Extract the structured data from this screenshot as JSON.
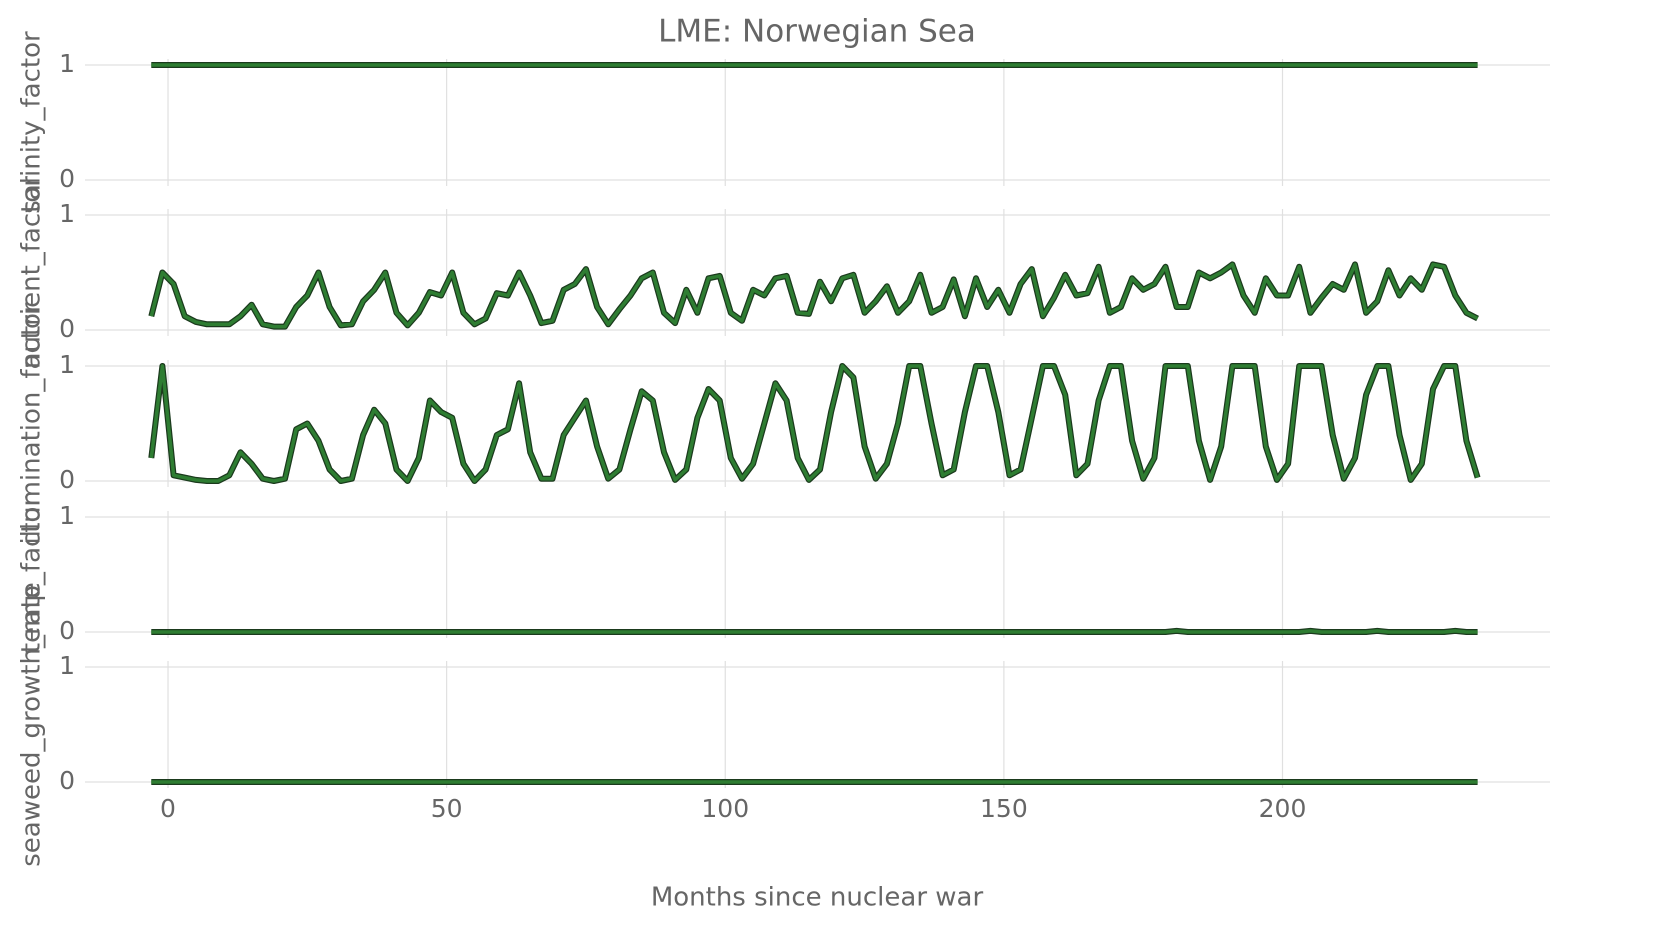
{
  "chart_data": {
    "type": "line",
    "title": "LME: Norwegian Sea",
    "xlabel": "Months since nuclear war",
    "xlim": [
      -14,
      248
    ],
    "xticks": [
      0,
      50,
      100,
      150,
      200
    ],
    "grid": true,
    "x": [
      -3,
      -1,
      1,
      3,
      5,
      7,
      9,
      11,
      13,
      15,
      17,
      19,
      21,
      23,
      25,
      27,
      29,
      31,
      33,
      35,
      37,
      39,
      41,
      43,
      45,
      47,
      49,
      51,
      53,
      55,
      57,
      59,
      61,
      63,
      65,
      67,
      69,
      71,
      73,
      75,
      77,
      79,
      81,
      83,
      85,
      87,
      89,
      91,
      93,
      95,
      97,
      99,
      101,
      103,
      105,
      107,
      109,
      111,
      113,
      115,
      117,
      119,
      121,
      123,
      125,
      127,
      129,
      131,
      133,
      135,
      137,
      139,
      141,
      143,
      145,
      147,
      149,
      151,
      153,
      155,
      157,
      159,
      161,
      163,
      165,
      167,
      169,
      171,
      173,
      175,
      177,
      179,
      181,
      183,
      185,
      187,
      189,
      191,
      193,
      195,
      197,
      199,
      201,
      203,
      205,
      207,
      209,
      211,
      213,
      215,
      217,
      219,
      221,
      223,
      225,
      227,
      229,
      231,
      233,
      235
    ],
    "series": [
      {
        "ylabel": "salinity_factor",
        "color": "#2e7d32",
        "ylim": [
          0,
          1
        ],
        "yticks": [
          0,
          1
        ],
        "values": [
          1,
          1,
          1,
          1,
          1,
          1,
          1,
          1,
          1,
          1,
          1,
          1,
          1,
          1,
          1,
          1,
          1,
          1,
          1,
          1,
          1,
          1,
          1,
          1,
          1,
          1,
          1,
          1,
          1,
          1,
          1,
          1,
          1,
          1,
          1,
          1,
          1,
          1,
          1,
          1,
          1,
          1,
          1,
          1,
          1,
          1,
          1,
          1,
          1,
          1,
          1,
          1,
          1,
          1,
          1,
          1,
          1,
          1,
          1,
          1,
          1,
          1,
          1,
          1,
          1,
          1,
          1,
          1,
          1,
          1,
          1,
          1,
          1,
          1,
          1,
          1,
          1,
          1,
          1,
          1,
          1,
          1,
          1,
          1,
          1,
          1,
          1,
          1,
          1,
          1,
          1,
          1,
          1,
          1,
          1,
          1,
          1,
          1,
          1,
          1,
          1,
          1,
          1,
          1,
          1,
          1,
          1,
          1,
          1,
          1,
          1,
          1,
          1,
          1,
          1,
          1,
          1,
          1,
          1,
          1
        ]
      },
      {
        "ylabel": "nutrient_factor",
        "color": "#2e7d32",
        "ylim": [
          0,
          1
        ],
        "yticks": [
          0,
          1
        ],
        "values": [
          0.12,
          0.5,
          0.4,
          0.12,
          0.07,
          0.05,
          0.05,
          0.05,
          0.12,
          0.22,
          0.05,
          0.03,
          0.03,
          0.2,
          0.3,
          0.5,
          0.2,
          0.04,
          0.05,
          0.25,
          0.35,
          0.5,
          0.15,
          0.04,
          0.15,
          0.33,
          0.3,
          0.5,
          0.15,
          0.05,
          0.1,
          0.32,
          0.3,
          0.5,
          0.3,
          0.06,
          0.08,
          0.35,
          0.4,
          0.53,
          0.2,
          0.05,
          0.18,
          0.3,
          0.45,
          0.5,
          0.15,
          0.06,
          0.35,
          0.15,
          0.45,
          0.47,
          0.15,
          0.08,
          0.35,
          0.3,
          0.45,
          0.47,
          0.15,
          0.14,
          0.42,
          0.25,
          0.45,
          0.48,
          0.15,
          0.25,
          0.38,
          0.15,
          0.25,
          0.48,
          0.15,
          0.2,
          0.44,
          0.12,
          0.45,
          0.2,
          0.35,
          0.15,
          0.4,
          0.53,
          0.12,
          0.28,
          0.48,
          0.3,
          0.32,
          0.55,
          0.15,
          0.2,
          0.45,
          0.35,
          0.4,
          0.55,
          0.2,
          0.2,
          0.5,
          0.45,
          0.5,
          0.57,
          0.3,
          0.15,
          0.45,
          0.3,
          0.3,
          0.55,
          0.15,
          0.28,
          0.4,
          0.35,
          0.57,
          0.15,
          0.25,
          0.52,
          0.3,
          0.45,
          0.35,
          0.57,
          0.55,
          0.3,
          0.15,
          0.1
        ]
      },
      {
        "ylabel": "illumination_factor",
        "color": "#2e7d32",
        "ylim": [
          0,
          1
        ],
        "yticks": [
          0,
          1
        ],
        "values": [
          0.2,
          1.0,
          0.05,
          0.03,
          0.01,
          0,
          0,
          0.05,
          0.25,
          0.15,
          0.02,
          0,
          0.02,
          0.45,
          0.5,
          0.35,
          0.1,
          0,
          0.02,
          0.4,
          0.62,
          0.5,
          0.1,
          0,
          0.2,
          0.7,
          0.6,
          0.55,
          0.15,
          0,
          0.1,
          0.4,
          0.45,
          0.85,
          0.25,
          0.02,
          0.02,
          0.4,
          0.55,
          0.7,
          0.3,
          0.02,
          0.1,
          0.45,
          0.78,
          0.7,
          0.25,
          0.01,
          0.1,
          0.55,
          0.8,
          0.7,
          0.2,
          0.02,
          0.15,
          0.5,
          0.85,
          0.7,
          0.2,
          0.01,
          0.1,
          0.6,
          1.0,
          0.9,
          0.3,
          0.02,
          0.15,
          0.5,
          1.0,
          1.0,
          0.5,
          0.05,
          0.1,
          0.6,
          1.0,
          1.0,
          0.6,
          0.05,
          0.1,
          0.55,
          1.0,
          1.0,
          0.75,
          0.05,
          0.15,
          0.7,
          1.0,
          1.0,
          0.35,
          0.02,
          0.2,
          1.0,
          1.0,
          1.0,
          0.35,
          0.01,
          0.3,
          1.0,
          1.0,
          1.0,
          0.3,
          0.01,
          0.15,
          1.0,
          1.0,
          1.0,
          0.4,
          0.02,
          0.2,
          0.75,
          1.0,
          1.0,
          0.4,
          0.01,
          0.15,
          0.8,
          1.0,
          1.0,
          0.35,
          0.03
        ]
      },
      {
        "ylabel": "temp_factor",
        "color": "#2e7d32",
        "ylim": [
          0,
          1
        ],
        "yticks": [
          0,
          1
        ],
        "values": [
          0,
          0,
          0,
          0,
          0,
          0,
          0,
          0,
          0,
          0,
          0,
          0,
          0,
          0,
          0,
          0,
          0,
          0,
          0,
          0,
          0,
          0,
          0,
          0,
          0,
          0,
          0,
          0,
          0,
          0,
          0,
          0,
          0,
          0,
          0,
          0,
          0,
          0,
          0,
          0,
          0,
          0,
          0,
          0,
          0,
          0,
          0,
          0,
          0,
          0,
          0,
          0,
          0,
          0,
          0,
          0,
          0,
          0,
          0,
          0,
          0,
          0,
          0,
          0,
          0,
          0,
          0,
          0,
          0,
          0,
          0,
          0,
          0,
          0,
          0,
          0,
          0,
          0,
          0,
          0,
          0,
          0,
          0,
          0,
          0,
          0,
          0,
          0,
          0,
          0,
          0,
          0,
          0.01,
          0,
          0,
          0,
          0,
          0,
          0,
          0,
          0,
          0,
          0,
          0,
          0.01,
          0,
          0,
          0,
          0,
          0,
          0.01,
          0,
          0,
          0,
          0,
          0,
          0,
          0.01,
          0,
          0
        ]
      },
      {
        "ylabel": "seaweed_growth_rate",
        "color": "#2e7d32",
        "ylim": [
          0,
          1
        ],
        "yticks": [
          0,
          1
        ],
        "values": [
          0,
          0,
          0,
          0,
          0,
          0,
          0,
          0,
          0,
          0,
          0,
          0,
          0,
          0,
          0,
          0,
          0,
          0,
          0,
          0,
          0,
          0,
          0,
          0,
          0,
          0,
          0,
          0,
          0,
          0,
          0,
          0,
          0,
          0,
          0,
          0,
          0,
          0,
          0,
          0,
          0,
          0,
          0,
          0,
          0,
          0,
          0,
          0,
          0,
          0,
          0,
          0,
          0,
          0,
          0,
          0,
          0,
          0,
          0,
          0,
          0,
          0,
          0,
          0,
          0,
          0,
          0,
          0,
          0,
          0,
          0,
          0,
          0,
          0,
          0,
          0,
          0,
          0,
          0,
          0,
          0,
          0,
          0,
          0,
          0,
          0,
          0,
          0,
          0,
          0,
          0,
          0,
          0,
          0,
          0,
          0,
          0,
          0,
          0,
          0,
          0,
          0,
          0,
          0,
          0,
          0,
          0,
          0,
          0,
          0,
          0,
          0,
          0,
          0,
          0,
          0,
          0,
          0,
          0,
          0
        ]
      }
    ]
  }
}
